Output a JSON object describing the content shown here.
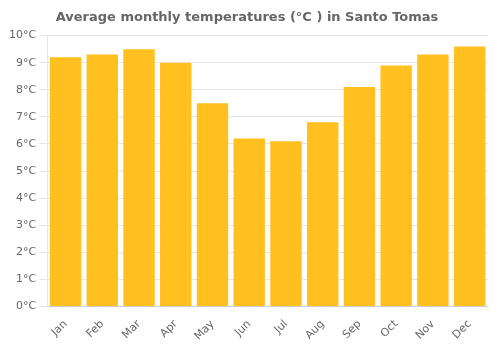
{
  "chart_data": {
    "type": "bar",
    "title": "Average monthly temperatures (°C ) in Santo Tomas",
    "categories": [
      "Jan",
      "Feb",
      "Mar",
      "Apr",
      "May",
      "Jun",
      "Jul",
      "Aug",
      "Sep",
      "Oct",
      "Nov",
      "Dec"
    ],
    "values": [
      9.2,
      9.3,
      9.5,
      9.0,
      7.5,
      6.2,
      6.1,
      6.8,
      8.1,
      8.9,
      9.3,
      9.6
    ],
    "color": "#FFC020",
    "ylim": [
      0,
      10
    ],
    "yticks": [
      {
        "value": 0,
        "label": "0°C"
      },
      {
        "value": 1,
        "label": "1°C"
      },
      {
        "value": 2,
        "label": "2°C"
      },
      {
        "value": 3,
        "label": "3°C"
      },
      {
        "value": 4,
        "label": "4°C"
      },
      {
        "value": 5,
        "label": "5°C"
      },
      {
        "value": 6,
        "label": "6°C"
      },
      {
        "value": 7,
        "label": "7°C"
      },
      {
        "value": 8,
        "label": "8°C"
      },
      {
        "value": 9,
        "label": "9°C"
      },
      {
        "value": 10,
        "label": "10°C"
      }
    ],
    "grid": true
  }
}
